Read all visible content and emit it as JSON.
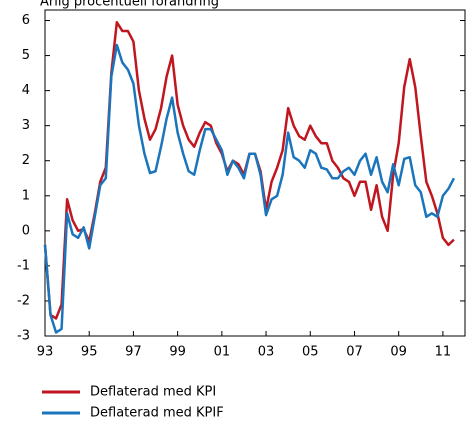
{
  "chart_data": {
    "type": "line",
    "title": "Årlig procentuell förändring",
    "x": [
      1993,
      1993.25,
      1993.5,
      1993.75,
      1994,
      1994.25,
      1994.5,
      1994.75,
      1995,
      1995.25,
      1995.5,
      1995.75,
      1996,
      1996.25,
      1996.5,
      1996.75,
      1997,
      1997.25,
      1997.5,
      1997.75,
      1998,
      1998.25,
      1998.5,
      1998.75,
      1999,
      1999.25,
      1999.5,
      1999.75,
      2000,
      2000.25,
      2000.5,
      2000.75,
      2001,
      2001.25,
      2001.5,
      2001.75,
      2002,
      2002.25,
      2002.5,
      2002.75,
      2003,
      2003.25,
      2003.5,
      2003.75,
      2004,
      2004.25,
      2004.5,
      2004.75,
      2005,
      2005.25,
      2005.5,
      2005.75,
      2006,
      2006.25,
      2006.5,
      2006.75,
      2007,
      2007.25,
      2007.5,
      2007.75,
      2008,
      2008.25,
      2008.5,
      2008.75,
      2009,
      2009.25,
      2009.5,
      2009.75,
      2010,
      2010.25,
      2010.5,
      2010.75,
      2011,
      2011.25,
      2011.5
    ],
    "series": [
      {
        "name": "Deflaterad med KPI",
        "color": "#c0161f",
        "values": [
          -0.4,
          -2.4,
          -2.5,
          -2.1,
          0.9,
          0.3,
          0.0,
          0.05,
          -0.3,
          0.5,
          1.4,
          1.8,
          4.5,
          5.95,
          5.7,
          5.7,
          5.4,
          4.0,
          3.2,
          2.6,
          2.9,
          3.5,
          4.4,
          5.0,
          3.6,
          3.0,
          2.6,
          2.4,
          2.8,
          3.1,
          3.0,
          2.5,
          2.2,
          1.7,
          2.0,
          1.9,
          1.6,
          2.2,
          2.2,
          1.7,
          0.6,
          1.4,
          1.8,
          2.3,
          3.5,
          3.0,
          2.7,
          2.6,
          3.0,
          2.7,
          2.5,
          2.5,
          2.0,
          1.8,
          1.5,
          1.4,
          1.0,
          1.4,
          1.4,
          0.6,
          1.3,
          0.4,
          0.0,
          1.6,
          2.5,
          4.1,
          4.9,
          4.1,
          2.7,
          1.4,
          1.0,
          0.5,
          -0.2,
          -0.4,
          -0.25
        ]
      },
      {
        "name": "Deflaterad med KPIF",
        "color": "#1a75bc",
        "values": [
          -0.4,
          -2.4,
          -2.9,
          -2.8,
          0.5,
          -0.1,
          -0.2,
          0.1,
          -0.5,
          0.4,
          1.3,
          1.5,
          4.4,
          5.3,
          4.8,
          4.6,
          4.2,
          3.0,
          2.2,
          1.65,
          1.7,
          2.4,
          3.2,
          3.8,
          2.8,
          2.2,
          1.7,
          1.6,
          2.3,
          2.9,
          2.9,
          2.6,
          2.3,
          1.6,
          2.0,
          1.8,
          1.5,
          2.2,
          2.2,
          1.6,
          0.45,
          0.9,
          1.0,
          1.6,
          2.8,
          2.1,
          2.0,
          1.8,
          2.3,
          2.2,
          1.8,
          1.75,
          1.5,
          1.5,
          1.7,
          1.8,
          1.6,
          2.0,
          2.2,
          1.6,
          2.1,
          1.4,
          1.1,
          1.9,
          1.3,
          2.05,
          2.1,
          1.3,
          1.1,
          0.4,
          0.5,
          0.4,
          1.0,
          1.2,
          1.5
        ]
      }
    ],
    "xlim": [
      1993,
      2012
    ],
    "xticks": [
      {
        "value": 1993,
        "label": "93"
      },
      {
        "value": 1995,
        "label": "95"
      },
      {
        "value": 1997,
        "label": "97"
      },
      {
        "value": 1999,
        "label": "99"
      },
      {
        "value": 2001,
        "label": "01"
      },
      {
        "value": 2003,
        "label": "03"
      },
      {
        "value": 2005,
        "label": "05"
      },
      {
        "value": 2007,
        "label": "07"
      },
      {
        "value": 2009,
        "label": "09"
      },
      {
        "value": 2011,
        "label": "11"
      }
    ],
    "ylim": [
      -3,
      6.3
    ],
    "yticks": [
      -3,
      -2,
      -1,
      0,
      1,
      2,
      3,
      4,
      5,
      6
    ]
  }
}
